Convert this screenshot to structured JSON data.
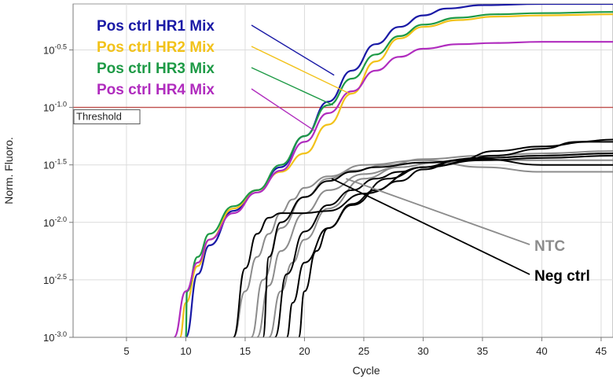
{
  "chart_data": {
    "type": "line",
    "xlabel": "Cycle",
    "ylabel": "Norm. Fluoro.",
    "xlim": [
      0.5,
      46
    ],
    "ylim_log10": [
      -3.0,
      -0.1
    ],
    "y_scale": "log",
    "x_ticks": [
      5,
      10,
      15,
      20,
      25,
      30,
      35,
      40,
      45
    ],
    "y_ticks": [
      {
        "exp": -0.5,
        "base": "10",
        "sup": "-0.5"
      },
      {
        "exp": -1.0,
        "base": "10",
        "sup": "-1.0"
      },
      {
        "exp": -1.5,
        "base": "10",
        "sup": "-1.5"
      },
      {
        "exp": -2.0,
        "base": "10",
        "sup": "-2.0"
      },
      {
        "exp": -2.5,
        "base": "10",
        "sup": "-2.5"
      },
      {
        "exp": -3.0,
        "base": "10",
        "sup": "-3.0"
      }
    ],
    "grid": true,
    "threshold": {
      "label": "Threshold",
      "y_log10": -1.0,
      "color": "#c0504d"
    },
    "series": [
      {
        "name": "Pos ctrl HR1 Mix",
        "color": "#1a1aa6",
        "x": [
          10,
          11,
          12,
          14,
          16,
          18,
          20,
          22,
          24,
          26,
          28,
          30,
          32,
          35,
          40,
          46
        ],
        "y": [
          -3.0,
          -2.45,
          -2.2,
          -1.9,
          -1.72,
          -1.52,
          -1.25,
          -0.95,
          -0.68,
          -0.45,
          -0.3,
          -0.2,
          -0.14,
          -0.11,
          -0.1,
          -0.1
        ]
      },
      {
        "name": "Pos ctrl HR2 Mix",
        "color": "#f2c21a",
        "x": [
          9.5,
          10,
          11,
          12,
          14,
          16,
          18,
          20,
          22,
          24,
          26,
          28,
          30,
          33,
          36,
          40,
          46
        ],
        "y": [
          -3.0,
          -2.7,
          -2.38,
          -2.15,
          -1.88,
          -1.72,
          -1.56,
          -1.4,
          -1.15,
          -0.88,
          -0.6,
          -0.4,
          -0.3,
          -0.24,
          -0.21,
          -0.2,
          -0.19
        ]
      },
      {
        "name": "Pos ctrl HR3 Mix",
        "color": "#1e9a46",
        "x": [
          10,
          10.1,
          11,
          12,
          14,
          16,
          18,
          20,
          22,
          24,
          26,
          28,
          30,
          33,
          36,
          40,
          46
        ],
        "y": [
          -3.0,
          -2.6,
          -2.3,
          -2.1,
          -1.86,
          -1.72,
          -1.5,
          -1.25,
          -0.98,
          -0.75,
          -0.54,
          -0.38,
          -0.28,
          -0.22,
          -0.19,
          -0.18,
          -0.17
        ]
      },
      {
        "name": "Pos ctrl HR4 Mix",
        "color": "#b02cbe",
        "x": [
          9,
          10,
          11,
          12,
          14,
          16,
          18,
          20,
          22,
          24,
          26,
          28,
          30,
          33,
          36,
          40,
          46
        ],
        "y": [
          -3.0,
          -2.6,
          -2.35,
          -2.15,
          -1.92,
          -1.74,
          -1.55,
          -1.3,
          -1.05,
          -0.86,
          -0.68,
          -0.56,
          -0.49,
          -0.45,
          -0.44,
          -0.43,
          -0.43
        ]
      },
      {
        "name": "Neg ctrl",
        "color": "#000000",
        "x": [
          14,
          15,
          16,
          17,
          18,
          20,
          22,
          25,
          30,
          35,
          40,
          46
        ],
        "y": [
          -3.0,
          -2.4,
          -2.1,
          -1.96,
          -1.92,
          -1.92,
          -1.9,
          -1.75,
          -1.52,
          -1.45,
          -1.5,
          -1.5
        ]
      },
      {
        "name": "Neg ctrl",
        "color": "#000000",
        "x": [
          16.5,
          17,
          18,
          20,
          22,
          24,
          26,
          30,
          35,
          40,
          46
        ],
        "y": [
          -3.0,
          -2.3,
          -2.0,
          -1.78,
          -1.64,
          -1.56,
          -1.52,
          -1.48,
          -1.44,
          -1.42,
          -1.4
        ]
      },
      {
        "name": "Neg ctrl",
        "color": "#000000",
        "x": [
          17.5,
          18.5,
          20,
          22,
          24,
          26,
          28,
          30,
          35,
          40,
          46
        ],
        "y": [
          -3.0,
          -2.45,
          -2.08,
          -1.85,
          -1.72,
          -1.62,
          -1.56,
          -1.52,
          -1.46,
          -1.44,
          -1.42
        ]
      },
      {
        "name": "Neg ctrl",
        "color": "#000000",
        "x": [
          18.5,
          19,
          20,
          22,
          24,
          26,
          28,
          30,
          33,
          36,
          40,
          44,
          46
        ],
        "y": [
          -3.0,
          -2.7,
          -2.35,
          -2.05,
          -1.84,
          -1.72,
          -1.64,
          -1.54,
          -1.46,
          -1.38,
          -1.34,
          -1.3,
          -1.3
        ]
      },
      {
        "name": "Neg ctrl",
        "color": "#000000",
        "x": [
          19.5,
          20,
          21,
          22,
          24,
          27,
          30,
          33,
          36,
          40,
          43,
          46
        ],
        "y": [
          -3.0,
          -2.6,
          -2.25,
          -2.05,
          -1.85,
          -1.62,
          -1.52,
          -1.46,
          -1.42,
          -1.36,
          -1.3,
          -1.28
        ]
      },
      {
        "name": "NTC",
        "color": "#8c8c8c",
        "x": [
          14,
          15,
          16,
          17,
          18,
          19,
          20,
          22,
          25,
          30,
          35,
          40,
          46
        ],
        "y": [
          -3.0,
          -2.6,
          -2.3,
          -2.1,
          -1.92,
          -1.8,
          -1.7,
          -1.6,
          -1.5,
          -1.46,
          -1.52,
          -1.56,
          -1.56
        ]
      },
      {
        "name": "NTC",
        "color": "#8c8c8c",
        "x": [
          15.5,
          16.5,
          18,
          20,
          22,
          24,
          27,
          30,
          35,
          40,
          46
        ],
        "y": [
          -3.0,
          -2.5,
          -2.05,
          -1.78,
          -1.62,
          -1.55,
          -1.5,
          -1.45,
          -1.42,
          -1.4,
          -1.38
        ]
      },
      {
        "name": "NTC",
        "color": "#8c8c8c",
        "x": [
          16,
          17,
          18,
          20,
          22,
          25,
          28,
          31,
          35,
          40,
          46
        ],
        "y": [
          -3.0,
          -2.55,
          -2.25,
          -1.92,
          -1.72,
          -1.58,
          -1.52,
          -1.48,
          -1.44,
          -1.42,
          -1.4
        ]
      },
      {
        "name": "NTC",
        "color": "#8c8c8c",
        "x": [
          17,
          18,
          19,
          20,
          22,
          25,
          28,
          31,
          35,
          40,
          46
        ],
        "y": [
          -3.0,
          -2.6,
          -2.35,
          -2.15,
          -1.88,
          -1.62,
          -1.52,
          -1.48,
          -1.46,
          -1.46,
          -1.46
        ]
      }
    ],
    "legend": [
      {
        "text": "Pos ctrl HR1 Mix",
        "color": "#1a1aa6",
        "target": [
          22.5,
          -0.72
        ]
      },
      {
        "text": "Pos ctrl HR2 Mix",
        "color": "#f2c21a",
        "target": [
          23.8,
          -0.88
        ]
      },
      {
        "text": "Pos ctrl HR3 Mix",
        "color": "#1e9a46",
        "target": [
          22.4,
          -0.98
        ]
      },
      {
        "text": "Pos ctrl HR4 Mix",
        "color": "#b02cbe",
        "target": [
          20.8,
          -1.2
        ]
      }
    ],
    "annotations": [
      {
        "text": "NTC",
        "color": "#8c8c8c",
        "target": [
          23.5,
          -1.62
        ]
      },
      {
        "text": "Neg ctrl",
        "color": "#000000",
        "target": [
          22.3,
          -1.62
        ]
      }
    ]
  }
}
